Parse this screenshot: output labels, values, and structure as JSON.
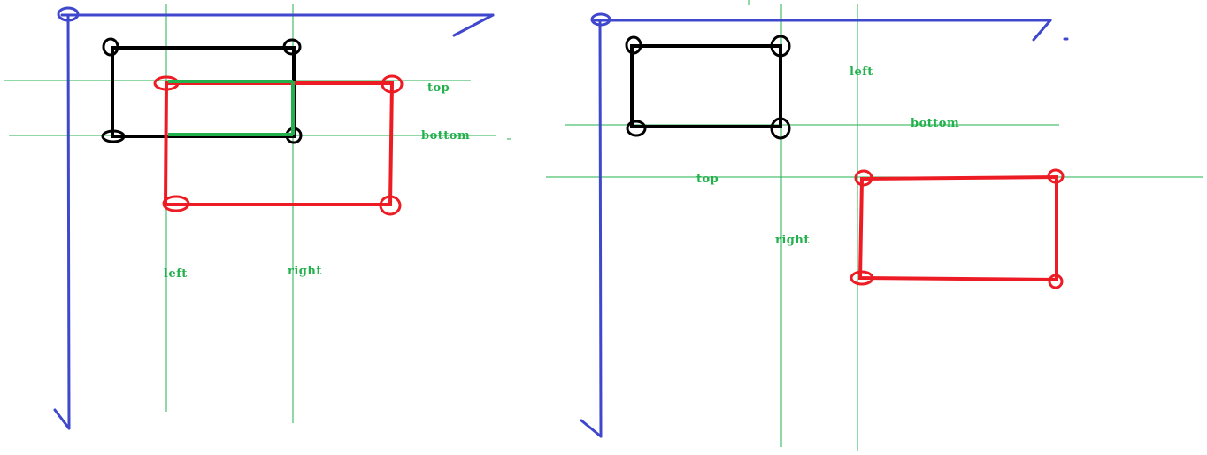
{
  "colors": {
    "axis": "#3f48cc",
    "guide": "#22b14c",
    "black_rect": "#000000",
    "red_rect": "#ed1c24",
    "overlap": "#22b14c",
    "background": "#ffffff"
  },
  "left_diagram": {
    "labels": {
      "top": "top",
      "bottom": "bottom",
      "left": "left",
      "right": "right"
    }
  },
  "right_diagram": {
    "labels": {
      "left": "left",
      "bottom": "bottom",
      "top": "top",
      "right": "right"
    }
  }
}
